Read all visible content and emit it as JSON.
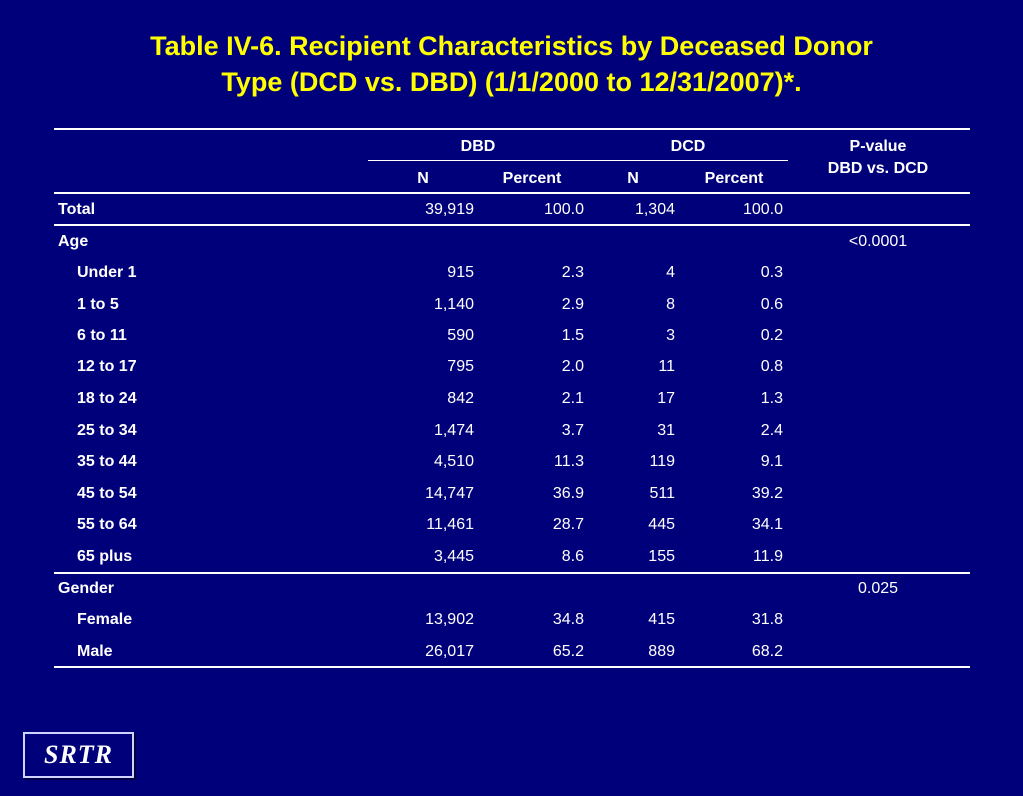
{
  "title": {
    "line1": "Table IV-6. Recipient Characteristics by Deceased Donor",
    "line2": "Type (DCD vs. DBD) (1/1/2000 to 12/31/2007)*."
  },
  "header": {
    "dbd": "DBD",
    "dcd": "DCD",
    "n": "N",
    "percent": "Percent",
    "pvalue_line1": "P-value",
    "pvalue_line2": "DBD vs. DCD"
  },
  "rows": [
    {
      "label": "Total",
      "indent": false,
      "dbd_n": "39,919",
      "dbd_pct": "100.0",
      "dcd_n": "1,304",
      "dcd_pct": "100.0",
      "pvalue": ""
    },
    {
      "label": "Age",
      "indent": false,
      "dbd_n": "",
      "dbd_pct": "",
      "dcd_n": "",
      "dcd_pct": "",
      "pvalue": "<0.0001"
    },
    {
      "label": "Under 1",
      "indent": true,
      "dbd_n": "915",
      "dbd_pct": "2.3",
      "dcd_n": "4",
      "dcd_pct": "0.3",
      "pvalue": ""
    },
    {
      "label": "1 to 5",
      "indent": true,
      "dbd_n": "1,140",
      "dbd_pct": "2.9",
      "dcd_n": "8",
      "dcd_pct": "0.6",
      "pvalue": ""
    },
    {
      "label": "6 to 11",
      "indent": true,
      "dbd_n": "590",
      "dbd_pct": "1.5",
      "dcd_n": "3",
      "dcd_pct": "0.2",
      "pvalue": ""
    },
    {
      "label": "12 to 17",
      "indent": true,
      "dbd_n": "795",
      "dbd_pct": "2.0",
      "dcd_n": "11",
      "dcd_pct": "0.8",
      "pvalue": ""
    },
    {
      "label": "18 to 24",
      "indent": true,
      "dbd_n": "842",
      "dbd_pct": "2.1",
      "dcd_n": "17",
      "dcd_pct": "1.3",
      "pvalue": ""
    },
    {
      "label": "25 to 34",
      "indent": true,
      "dbd_n": "1,474",
      "dbd_pct": "3.7",
      "dcd_n": "31",
      "dcd_pct": "2.4",
      "pvalue": ""
    },
    {
      "label": "35 to 44",
      "indent": true,
      "dbd_n": "4,510",
      "dbd_pct": "11.3",
      "dcd_n": "119",
      "dcd_pct": "9.1",
      "pvalue": ""
    },
    {
      "label": "45 to 54",
      "indent": true,
      "dbd_n": "14,747",
      "dbd_pct": "36.9",
      "dcd_n": "511",
      "dcd_pct": "39.2",
      "pvalue": ""
    },
    {
      "label": "55 to 64",
      "indent": true,
      "dbd_n": "11,461",
      "dbd_pct": "28.7",
      "dcd_n": "445",
      "dcd_pct": "34.1",
      "pvalue": ""
    },
    {
      "label": "65 plus",
      "indent": true,
      "dbd_n": "3,445",
      "dbd_pct": "8.6",
      "dcd_n": "155",
      "dcd_pct": "11.9",
      "pvalue": ""
    },
    {
      "label": "Gender",
      "indent": false,
      "dbd_n": "",
      "dbd_pct": "",
      "dcd_n": "",
      "dcd_pct": "",
      "pvalue": "0.025"
    },
    {
      "label": "Female",
      "indent": true,
      "dbd_n": "13,902",
      "dbd_pct": "34.8",
      "dcd_n": "415",
      "dcd_pct": "31.8",
      "pvalue": ""
    },
    {
      "label": "Male",
      "indent": true,
      "dbd_n": "26,017",
      "dbd_pct": "65.2",
      "dcd_n": "889",
      "dcd_pct": "68.2",
      "pvalue": ""
    }
  ],
  "logo_text": "SRTR"
}
